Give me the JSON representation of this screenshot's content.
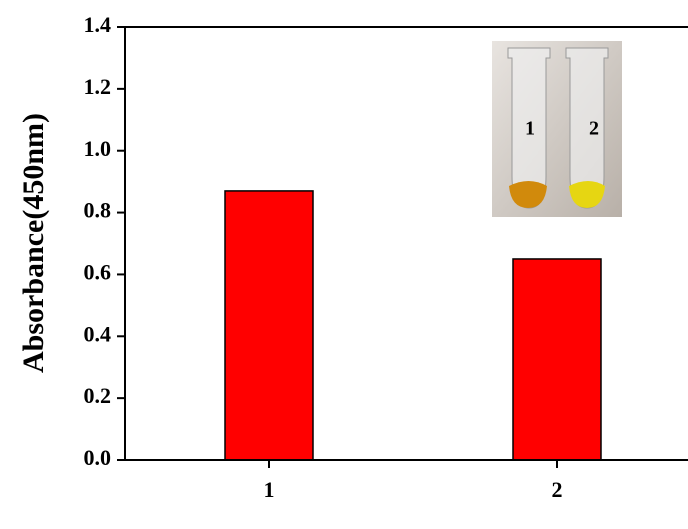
{
  "chart_data": {
    "type": "bar",
    "y_label": "Absorbance(450nm)",
    "categories": [
      "1",
      "2"
    ],
    "values": [
      0.87,
      0.65
    ],
    "color": "#ff0000",
    "ylim": [
      0,
      1.4
    ],
    "yticks": [
      {
        "value": 0,
        "label": "0.0"
      },
      0.2,
      0.4,
      0.6,
      0.8,
      {
        "value": 1,
        "label": "1.0"
      },
      1.2,
      1.4
    ],
    "inset_labels": [
      "1",
      "2"
    ]
  }
}
